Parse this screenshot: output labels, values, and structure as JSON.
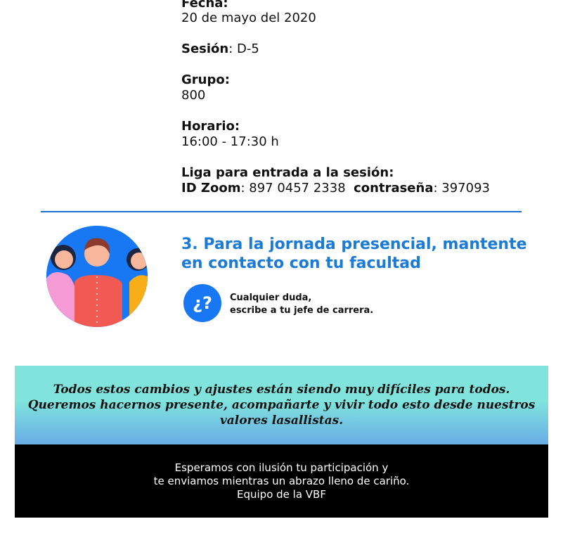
{
  "details": {
    "fecha_label": "Fecha:",
    "fecha_value": "20 de mayo del 2020",
    "sesion_label": "Sesión",
    "sesion_value": ": D-5",
    "grupo_label": "Grupo:",
    "grupo_value": "800",
    "horario_label": "Horario:",
    "horario_value": "16:00 - 17:30 h",
    "liga_label": "Liga para entrada a la sesión:",
    "zoom_id_label": "ID Zoom",
    "zoom_id_value": ": 897 0457 2338",
    "password_label": "contraseña",
    "password_value": ": 397093"
  },
  "step3": {
    "heading_line1": "3. Para la jornada presencial, mantente",
    "heading_line2": "en contacto con tu facultad",
    "icon_glyph": "¿?",
    "help_line1": "Cualquier duda,",
    "help_line2": "escribe a tu jefe de carrera."
  },
  "banner": {
    "line1": "Todos estos cambios y ajustes están siendo muy difíciles para todos.",
    "line2": "Queremos hacernos presente, acompañarte y vivir todo esto desde nuestros",
    "line3": "valores lasallistas."
  },
  "footer": {
    "line1": "Esperamos con ilusión tu participación y",
    "line2": "te enviamos mientras un abrazo lleno de cariño.",
    "line3": "Equipo de la VBF"
  },
  "colors": {
    "accent": "#1a73d0",
    "teal": "#80e3dc",
    "footer_bg": "#000000"
  }
}
